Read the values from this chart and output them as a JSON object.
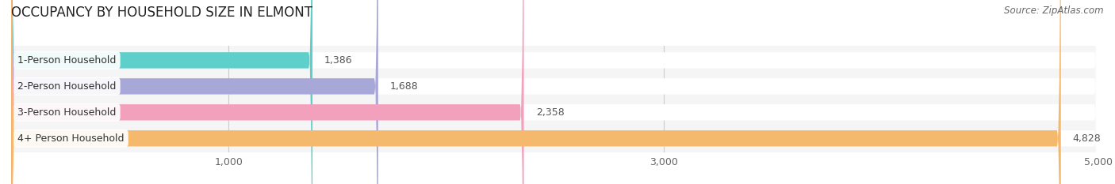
{
  "title": "OCCUPANCY BY HOUSEHOLD SIZE IN ELMONT",
  "source": "Source: ZipAtlas.com",
  "categories": [
    "1-Person Household",
    "2-Person Household",
    "3-Person Household",
    "4+ Person Household"
  ],
  "values": [
    1386,
    1688,
    2358,
    4828
  ],
  "bar_colors": [
    "#5ecfca",
    "#a8a8d8",
    "#f2a0bc",
    "#f5b96e"
  ],
  "value_labels": [
    "1,386",
    "1,688",
    "2,358",
    "4,828"
  ],
  "xlim": [
    0,
    5000
  ],
  "xticks": [
    1000,
    3000,
    5000
  ],
  "xtick_labels": [
    "1,000",
    "3,000",
    "5,000"
  ],
  "background_color": "#f5f5f5",
  "bar_background_color": "#e8e8e8",
  "title_fontsize": 12,
  "label_fontsize": 9,
  "value_fontsize": 9,
  "source_fontsize": 8.5
}
